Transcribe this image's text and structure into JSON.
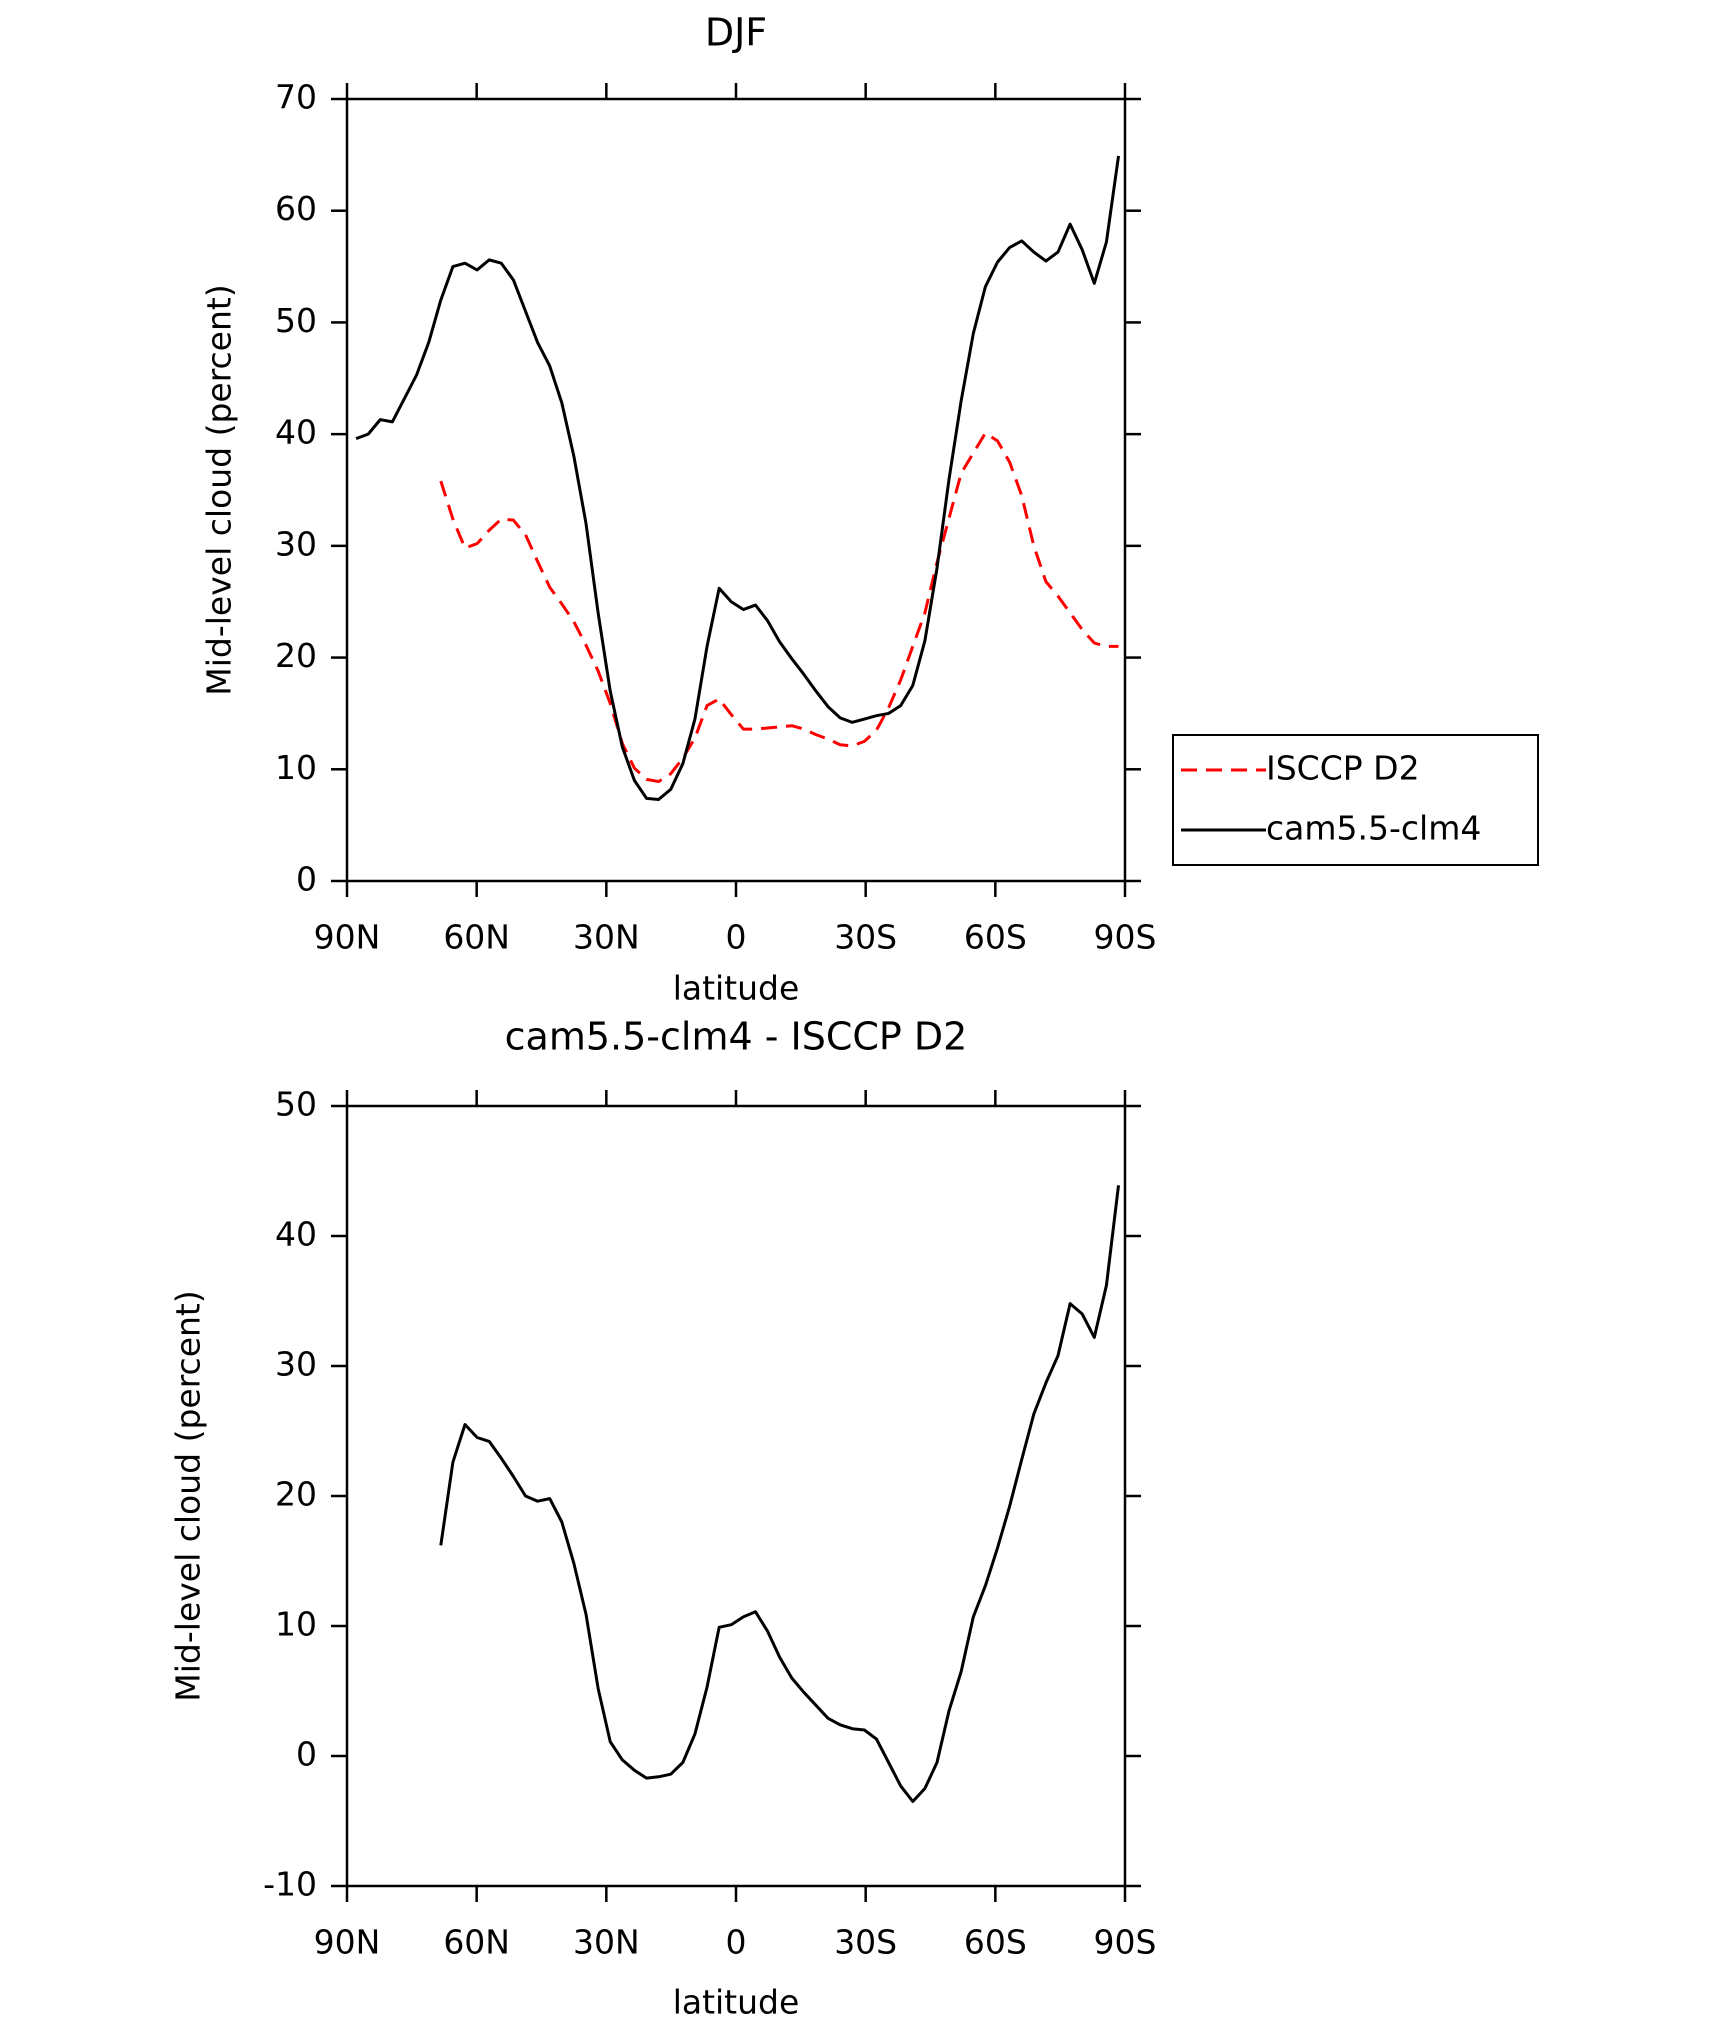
{
  "chart_data": [
    {
      "type": "line",
      "title": "DJF",
      "x_label": "latitude",
      "y_label": "Mid-level cloud (percent)",
      "x": [
        87.9,
        85.1,
        82.3,
        79.5,
        76.7,
        73.9,
        71.1,
        68.3,
        65.5,
        62.7,
        59.9,
        57.1,
        54.3,
        51.5,
        48.7,
        45.9,
        43.1,
        40.3,
        37.5,
        34.7,
        31.9,
        29.1,
        26.3,
        23.5,
        20.7,
        17.9,
        15.1,
        12.3,
        9.5,
        6.7,
        3.9,
        1.1,
        -1.7,
        -4.5,
        -7.3,
        -10.1,
        -12.9,
        -15.7,
        -18.5,
        -21.3,
        -24.1,
        -26.9,
        -29.7,
        -32.5,
        -35.3,
        -38.1,
        -40.9,
        -43.7,
        -46.5,
        -49.3,
        -52.1,
        -54.9,
        -57.7,
        -60.5,
        -63.3,
        -66.1,
        -68.9,
        -71.7,
        -74.5,
        -77.3,
        -80.1,
        -82.9,
        -85.7,
        -88.5
      ],
      "series": [
        {
          "name": "ISCCP D2",
          "color": "#ff0000",
          "linestyle": "dashed",
          "values": [
            null,
            null,
            null,
            null,
            null,
            null,
            null,
            35.8,
            32.4,
            29.8,
            30.2,
            31.4,
            32.4,
            32.3,
            31.0,
            28.6,
            26.3,
            24.8,
            23.2,
            21.1,
            18.8,
            15.9,
            12.3,
            10.1,
            9.1,
            8.9,
            9.6,
            11.0,
            12.8,
            15.7,
            16.3,
            14.9,
            13.6,
            13.6,
            13.7,
            13.8,
            13.9,
            13.6,
            13.1,
            12.7,
            12.2,
            12.1,
            12.5,
            13.5,
            15.5,
            18.0,
            21.0,
            24.0,
            28.5,
            32.5,
            36.5,
            38.3,
            40.1,
            39.4,
            37.5,
            34.5,
            30.0,
            26.8,
            25.5,
            24.0,
            22.5,
            21.3,
            21.0,
            21.0
          ]
        },
        {
          "name": "cam5.5-clm4",
          "color": "#000000",
          "linestyle": "solid",
          "values": [
            39.6,
            40.0,
            41.3,
            41.1,
            43.2,
            45.3,
            48.2,
            52.0,
            55.0,
            55.3,
            54.7,
            55.6,
            55.3,
            53.8,
            51.0,
            48.2,
            46.1,
            42.8,
            38.0,
            32.0,
            24.0,
            17.0,
            12.0,
            9.0,
            7.4,
            7.3,
            8.2,
            10.5,
            14.5,
            21.0,
            26.2,
            25.0,
            24.3,
            24.7,
            23.3,
            21.4,
            19.9,
            18.5,
            17.0,
            15.6,
            14.6,
            14.2,
            14.5,
            14.8,
            15.0,
            15.7,
            17.5,
            21.5,
            28.0,
            36.0,
            43.0,
            49.0,
            53.2,
            55.4,
            56.7,
            57.3,
            56.3,
            55.5,
            56.3,
            58.8,
            56.5,
            53.5,
            57.2,
            64.9
          ]
        }
      ],
      "xlim": [
        90,
        -90
      ],
      "xticks": [
        {
          "value": 90,
          "label": "90N"
        },
        {
          "value": 60,
          "label": "60N"
        },
        {
          "value": 30,
          "label": "30N"
        },
        0,
        {
          "value": -30,
          "label": "30S"
        },
        {
          "value": -60,
          "label": "60S"
        },
        {
          "value": -90,
          "label": "90S"
        }
      ],
      "ylim": [
        0,
        70
      ],
      "yticks": [
        0,
        10,
        20,
        30,
        40,
        50,
        60,
        70
      ],
      "legend": "outside-right",
      "grid": false
    },
    {
      "type": "line",
      "title": "cam5.5-clm4 - ISCCP D2",
      "x_label": "latitude",
      "y_label": "Mid-level cloud (percent)",
      "x": [
        87.9,
        85.1,
        82.3,
        79.5,
        76.7,
        73.9,
        71.1,
        68.3,
        65.5,
        62.7,
        59.9,
        57.1,
        54.3,
        51.5,
        48.7,
        45.9,
        43.1,
        40.3,
        37.5,
        34.7,
        31.9,
        29.1,
        26.3,
        23.5,
        20.7,
        17.9,
        15.1,
        12.3,
        9.5,
        6.7,
        3.9,
        1.1,
        -1.7,
        -4.5,
        -7.3,
        -10.1,
        -12.9,
        -15.7,
        -18.5,
        -21.3,
        -24.1,
        -26.9,
        -29.7,
        -32.5,
        -35.3,
        -38.1,
        -40.9,
        -43.7,
        -46.5,
        -49.3,
        -52.1,
        -54.9,
        -57.7,
        -60.5,
        -63.3,
        -66.1,
        -68.9,
        -71.7,
        -74.5,
        -77.3,
        -80.1,
        -82.9,
        -85.7,
        -88.5
      ],
      "values": [
        null,
        null,
        null,
        null,
        null,
        null,
        null,
        16.2,
        22.6,
        25.5,
        24.5,
        24.2,
        22.9,
        21.5,
        20.0,
        19.6,
        19.8,
        18.0,
        14.8,
        10.9,
        5.2,
        1.1,
        -0.3,
        -1.1,
        -1.7,
        -1.6,
        -1.4,
        -0.5,
        1.7,
        5.3,
        9.9,
        10.1,
        10.7,
        11.1,
        9.6,
        7.6,
        6.0,
        4.9,
        3.9,
        2.9,
        2.4,
        2.1,
        2.0,
        1.3,
        -0.5,
        -2.3,
        -3.5,
        -2.5,
        -0.5,
        3.5,
        6.5,
        10.7,
        13.1,
        16.0,
        19.2,
        22.8,
        26.3,
        28.7,
        30.8,
        34.8,
        34.0,
        32.2,
        36.2,
        43.9
      ],
      "color": "#000000",
      "xlim": [
        90,
        -90
      ],
      "xticks": [
        {
          "value": 90,
          "label": "90N"
        },
        {
          "value": 60,
          "label": "60N"
        },
        {
          "value": 30,
          "label": "30N"
        },
        0,
        {
          "value": -30,
          "label": "30S"
        },
        {
          "value": -60,
          "label": "60S"
        },
        {
          "value": -90,
          "label": "90S"
        }
      ],
      "ylim": [
        -10,
        50
      ],
      "yticks": [
        -10,
        0,
        10,
        20,
        30,
        40,
        50
      ],
      "grid": false
    }
  ]
}
